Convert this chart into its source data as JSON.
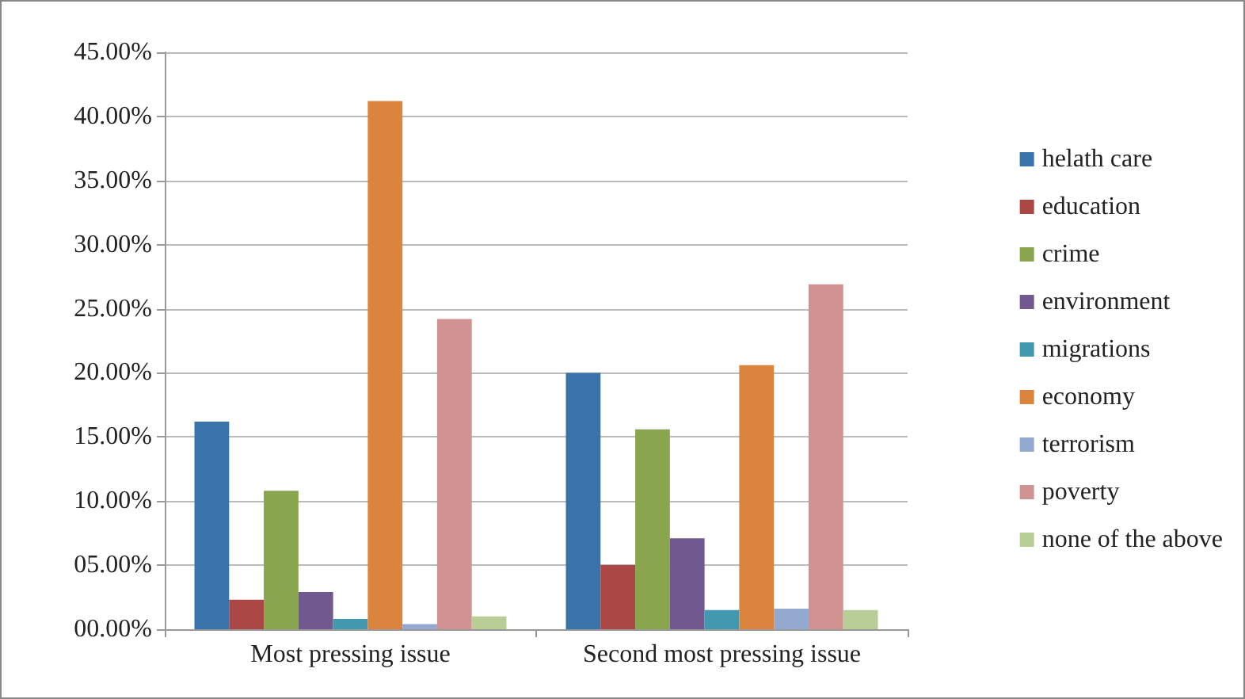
{
  "chart_data": {
    "type": "bar",
    "categories": [
      "Most pressing issue",
      "Second most pressing issue"
    ],
    "series": [
      {
        "name": "helath care",
        "color": "#3a72aa",
        "values": [
          16.2,
          20.0
        ]
      },
      {
        "name": "education",
        "color": "#aa4643",
        "values": [
          2.3,
          5.0
        ]
      },
      {
        "name": "crime",
        "color": "#89a54e",
        "values": [
          10.8,
          15.6
        ]
      },
      {
        "name": "environment",
        "color": "#71588f",
        "values": [
          2.9,
          7.1
        ]
      },
      {
        "name": "migrations",
        "color": "#4198af",
        "values": [
          0.8,
          1.5
        ]
      },
      {
        "name": "economy",
        "color": "#db843d",
        "values": [
          41.2,
          20.6
        ]
      },
      {
        "name": "terrorism",
        "color": "#93a9cf",
        "values": [
          0.4,
          1.6
        ]
      },
      {
        "name": "poverty",
        "color": "#d19392",
        "values": [
          24.2,
          26.9
        ]
      },
      {
        "name": "none of the above",
        "color": "#b9cd96",
        "values": [
          1.0,
          1.5
        ]
      }
    ],
    "ylim": [
      0,
      45
    ],
    "yticks": [
      {
        "value": 0,
        "label": "00.00%"
      },
      {
        "value": 5,
        "label": "05.00%"
      },
      {
        "value": 10,
        "label": "10.00%"
      },
      {
        "value": 15,
        "label": "15.00%"
      },
      {
        "value": 20,
        "label": "20.00%"
      },
      {
        "value": 25,
        "label": "25.00%"
      },
      {
        "value": 30,
        "label": "30.00%"
      },
      {
        "value": 35,
        "label": "35.00%"
      },
      {
        "value": 40,
        "label": "40.00%"
      },
      {
        "value": 45,
        "label": "45.00%"
      }
    ],
    "grid": "y",
    "legend": "right"
  }
}
